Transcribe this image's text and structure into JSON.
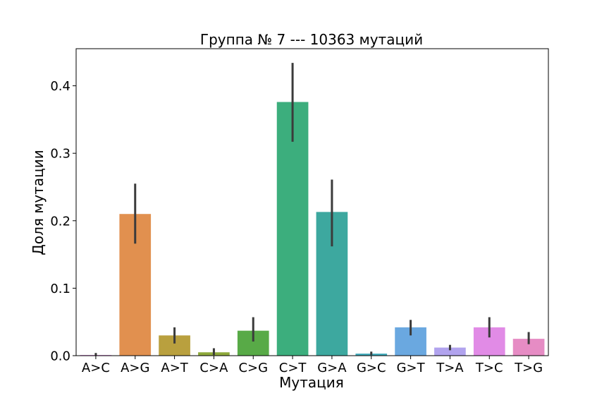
{
  "chart_data": {
    "type": "bar",
    "title": "Группа № 7 --- 10363 мутаций",
    "xlabel": "Мутация",
    "ylabel": "Доля мутации",
    "ylim": [
      0,
      0.455
    ],
    "y_ticks": [
      0.0,
      0.1,
      0.2,
      0.3,
      0.4
    ],
    "y_tick_labels": [
      "0.0",
      "0.1",
      "0.2",
      "0.3",
      "0.4"
    ],
    "grid": false,
    "legend": "none",
    "categories": [
      "A>C",
      "A>G",
      "A>T",
      "C>A",
      "C>G",
      "C>T",
      "G>A",
      "G>C",
      "G>T",
      "T>A",
      "T>C",
      "T>G"
    ],
    "values": [
      0.001,
      0.21,
      0.03,
      0.005,
      0.037,
      0.376,
      0.213,
      0.003,
      0.042,
      0.012,
      0.042,
      0.025
    ],
    "error_low": [
      0.0,
      0.166,
      0.018,
      0.001,
      0.021,
      0.317,
      0.162,
      0.001,
      0.03,
      0.008,
      0.027,
      0.017
    ],
    "error_high": [
      0.004,
      0.255,
      0.042,
      0.011,
      0.057,
      0.434,
      0.261,
      0.006,
      0.053,
      0.016,
      0.057,
      0.035
    ],
    "colors": [
      "#e48fe8",
      "#e1904f",
      "#b9a03e",
      "#8ea93b",
      "#58aa47",
      "#3cae7d",
      "#3da89f",
      "#3ea9b9",
      "#6aa8e0",
      "#b1a3ee",
      "#e18be6",
      "#e68cc4"
    ],
    "error_color": "#3b3b3b"
  }
}
